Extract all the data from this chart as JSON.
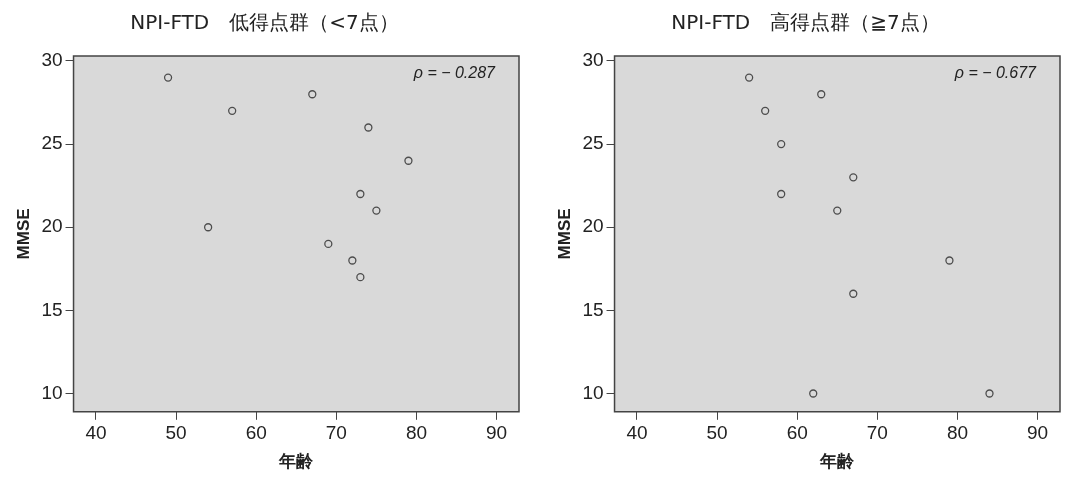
{
  "chart_data": [
    {
      "type": "scatter",
      "title": "NPI-FTD　低得点群（<7点）",
      "xlabel": "年齢",
      "ylabel": "MMSE",
      "x": [
        49,
        57,
        67,
        74,
        79,
        54,
        73,
        75,
        69,
        72,
        73
      ],
      "values": [
        29,
        27,
        28,
        26,
        24,
        20,
        22,
        21,
        19,
        18,
        17
      ],
      "color": "#4d4d4d",
      "marker": "circle",
      "grid": false,
      "legend": false,
      "xlim": [
        37.2,
        92.8
      ],
      "xticks": [
        40,
        50,
        60,
        70,
        80,
        90
      ],
      "ylim": [
        8.9,
        30.3
      ],
      "yticks": [
        10,
        15,
        20,
        25,
        30
      ],
      "annotations": [
        "ρ = − 0.287"
      ]
    },
    {
      "type": "scatter",
      "title": "NPI-FTD　高得点群（≧7点）",
      "xlabel": "年齢",
      "ylabel": "MMSE",
      "x": [
        54,
        63,
        56,
        58,
        67,
        58,
        65,
        79,
        67,
        62,
        84
      ],
      "values": [
        29,
        28,
        27,
        25,
        23,
        22,
        21,
        18,
        16,
        10,
        10
      ],
      "color": "#4d4d4d",
      "marker": "circle",
      "grid": false,
      "legend": false,
      "xlim": [
        37.2,
        92.8
      ],
      "xticks": [
        40,
        50,
        60,
        70,
        80,
        90
      ],
      "ylim": [
        8.9,
        30.3
      ],
      "yticks": [
        10,
        15,
        20,
        25,
        30
      ],
      "annotations": [
        "ρ = − 0.677"
      ]
    }
  ]
}
